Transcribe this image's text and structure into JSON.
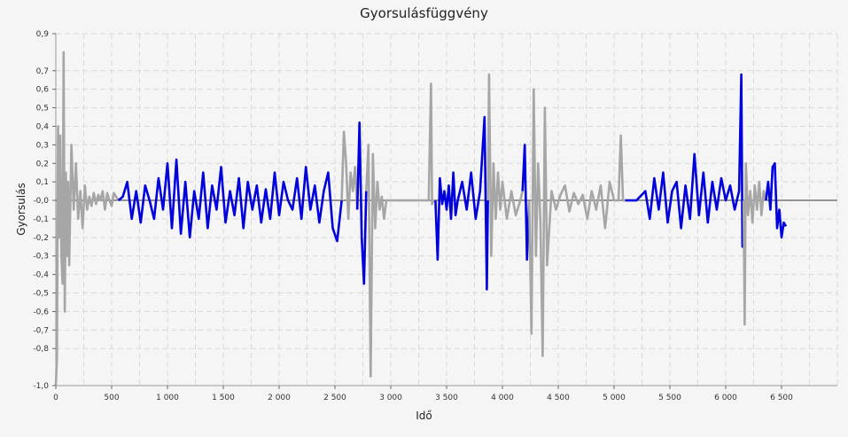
{
  "chart_data": {
    "type": "line",
    "title": "Gyorsulásfüggvény",
    "xlabel": "Idő",
    "ylabel": "Gyorsulás",
    "xlim": [
      0,
      7000
    ],
    "ylim": [
      -1.0,
      0.9
    ],
    "x_ticks": [
      0,
      500,
      1000,
      1500,
      2000,
      2500,
      3000,
      3500,
      4000,
      4500,
      5000,
      5500,
      6000,
      6500
    ],
    "x_tick_labels": [
      "0",
      "500",
      "1 000",
      "1 500",
      "2 000",
      "2 500",
      "3 000",
      "3 500",
      "4 000",
      "4 500",
      "5 000",
      "5 500",
      "6 000",
      "6 500"
    ],
    "y_ticks": [
      0.9,
      0.7,
      0.6,
      0.5,
      0.4,
      0.3,
      0.2,
      0.1,
      0.0,
      -0.1,
      -0.2,
      -0.3,
      -0.4,
      -0.5,
      -0.6,
      -0.7,
      -0.8,
      -1.0
    ],
    "y_tick_labels": [
      "0,9",
      "0,7",
      "0,6",
      "0,5",
      "0,4",
      "0,3",
      "0,2",
      "0,1",
      "-0,0",
      "-0,1",
      "-0,2",
      "-0,3",
      "-0,4",
      "-0,5",
      "-0,6",
      "-0,7",
      "-0,8",
      "-1,0"
    ],
    "grid": true,
    "colors": {
      "active": "#0000dd",
      "inactive": "#a6a6a6",
      "zero_line": "#333333",
      "grid": "#d9d9d9"
    },
    "series": [
      {
        "color": "#a6a6a6",
        "x": [
          0,
          10,
          20,
          30,
          40,
          50,
          60,
          70,
          80,
          90,
          100,
          110,
          120,
          140,
          160,
          180,
          200,
          220,
          240,
          260,
          280,
          300,
          320,
          340,
          360,
          380,
          400,
          420,
          440,
          460,
          480,
          500,
          520,
          540,
          560
        ],
        "y": [
          -1.0,
          -0.85,
          0.4,
          -0.2,
          0.35,
          -0.3,
          -0.45,
          0.8,
          -0.6,
          0.15,
          -0.3,
          0.1,
          -0.35,
          0.3,
          -0.05,
          0.2,
          -0.1,
          0.05,
          -0.15,
          0.08,
          -0.05,
          0.02,
          -0.03,
          0.04,
          -0.02,
          0.03,
          0.0,
          0.05,
          -0.05,
          0.04,
          0.0,
          -0.03,
          0.04,
          0.02,
          0.0
        ]
      },
      {
        "color": "#0000dd",
        "x": [
          560,
          600,
          640,
          680,
          720,
          760,
          800,
          840,
          880,
          920,
          960,
          1000,
          1040,
          1080,
          1120,
          1160,
          1200,
          1240,
          1280,
          1320,
          1360,
          1400,
          1440,
          1480,
          1520,
          1560,
          1600,
          1640,
          1680,
          1720,
          1760,
          1800,
          1840,
          1880,
          1920,
          1960,
          2000,
          2040,
          2080,
          2120,
          2160,
          2200,
          2240,
          2280,
          2320,
          2360,
          2400,
          2440,
          2480,
          2520,
          2560
        ],
        "y": [
          0.0,
          0.02,
          0.1,
          -0.1,
          0.05,
          -0.12,
          0.08,
          0.0,
          -0.1,
          0.12,
          -0.05,
          0.2,
          -0.15,
          0.22,
          -0.18,
          0.1,
          -0.2,
          0.05,
          -0.1,
          0.15,
          -0.15,
          0.08,
          -0.05,
          0.18,
          -0.12,
          0.05,
          -0.08,
          0.12,
          -0.15,
          0.1,
          -0.05,
          0.08,
          -0.12,
          0.06,
          -0.1,
          0.15,
          -0.08,
          0.1,
          0.0,
          -0.05,
          0.12,
          -0.1,
          0.18,
          -0.05,
          0.08,
          -0.12,
          0.05,
          0.15,
          -0.15,
          -0.22,
          0.0
        ]
      },
      {
        "color": "#a6a6a6",
        "x": [
          2560,
          2580,
          2600,
          2620,
          2640,
          2660,
          2680,
          2700
        ],
        "y": [
          0.0,
          0.37,
          0.2,
          -0.1,
          0.15,
          0.05,
          0.18,
          -0.05
        ]
      },
      {
        "color": "#0000dd",
        "x": [
          2700,
          2720,
          2740,
          2760,
          2780
        ],
        "y": [
          -0.05,
          0.42,
          -0.2,
          -0.45,
          0.05
        ]
      },
      {
        "color": "#a6a6a6",
        "x": [
          2780,
          2800,
          2820,
          2840,
          2860,
          2880,
          2900,
          2920,
          2940,
          2960,
          3000,
          3100,
          3200,
          3300,
          3340,
          3360,
          3370,
          3380,
          3400
        ],
        "y": [
          0.05,
          0.3,
          -0.95,
          0.25,
          -0.15,
          0.1,
          -0.05,
          0.02,
          -0.1,
          0.0,
          0.0,
          0.0,
          0.0,
          0.0,
          0.0,
          0.63,
          -0.02,
          0.0,
          0.0
        ]
      },
      {
        "color": "#0000dd",
        "x": [
          3400,
          3420,
          3440,
          3460,
          3480,
          3500,
          3520,
          3540,
          3560,
          3580,
          3600,
          3640,
          3680,
          3720,
          3760,
          3800,
          3840,
          3860,
          3870
        ],
        "y": [
          0.0,
          -0.32,
          0.12,
          -0.02,
          0.05,
          -0.05,
          0.08,
          -0.1,
          0.15,
          -0.08,
          0.0,
          0.1,
          -0.05,
          0.15,
          -0.1,
          0.05,
          0.45,
          -0.48,
          0.0
        ]
      },
      {
        "color": "#a6a6a6",
        "x": [
          3870,
          3880,
          3900,
          3920,
          3940,
          3960,
          3980,
          4000,
          4040,
          4080,
          4120,
          4160,
          4180
        ],
        "y": [
          0.0,
          0.68,
          -0.3,
          0.2,
          -0.1,
          0.15,
          -0.05,
          0.1,
          -0.1,
          0.05,
          -0.08,
          0.0,
          0.05
        ]
      },
      {
        "color": "#0000dd",
        "x": [
          4180,
          4200,
          4220,
          4240
        ],
        "y": [
          0.05,
          0.3,
          -0.32,
          0.0
        ]
      },
      {
        "color": "#a6a6a6",
        "x": [
          4240,
          4260,
          4280,
          4300,
          4320,
          4340,
          4360,
          4380,
          4400,
          4440,
          4480,
          4520,
          4560,
          4600,
          4640,
          4680,
          4720,
          4760,
          4800,
          4840,
          4880,
          4920,
          4960,
          5000,
          5040,
          5060,
          5080,
          5100
        ],
        "y": [
          0.0,
          -0.72,
          0.6,
          -0.3,
          0.2,
          -0.1,
          -0.84,
          0.5,
          -0.35,
          0.05,
          -0.05,
          0.03,
          0.08,
          -0.06,
          0.04,
          -0.02,
          0.03,
          -0.1,
          0.05,
          -0.05,
          0.08,
          -0.15,
          0.1,
          0.0,
          0.0,
          0.35,
          0.0,
          0.0
        ]
      },
      {
        "color": "#0000dd",
        "x": [
          5100,
          5200,
          5280,
          5320,
          5360,
          5400,
          5440,
          5480,
          5520,
          5560,
          5600,
          5640,
          5680,
          5720,
          5760,
          5800,
          5840,
          5880,
          5920,
          5960,
          6000,
          6040,
          6080,
          6120,
          6140,
          6150,
          6160
        ],
        "y": [
          0.0,
          0.0,
          0.05,
          -0.1,
          0.12,
          -0.05,
          0.15,
          -0.12,
          0.05,
          0.1,
          -0.15,
          0.08,
          -0.1,
          0.25,
          -0.08,
          0.15,
          -0.12,
          0.1,
          -0.05,
          0.12,
          0.0,
          0.08,
          -0.05,
          0.05,
          0.68,
          -0.25,
          0.0
        ]
      },
      {
        "color": "#a6a6a6",
        "x": [
          6160,
          6170,
          6180,
          6200,
          6220,
          6240,
          6260,
          6280,
          6300,
          6320,
          6340,
          6360
        ],
        "y": [
          0.0,
          -0.67,
          0.2,
          -0.08,
          0.05,
          -0.12,
          0.08,
          -0.05,
          0.1,
          -0.08,
          0.05,
          0.0
        ]
      },
      {
        "color": "#0000dd",
        "x": [
          6360,
          6380,
          6400,
          6420,
          6440,
          6460,
          6480,
          6500,
          6520,
          6540
        ],
        "y": [
          0.0,
          0.1,
          -0.05,
          0.18,
          0.2,
          -0.15,
          -0.05,
          -0.2,
          -0.12,
          -0.14
        ]
      }
    ]
  }
}
